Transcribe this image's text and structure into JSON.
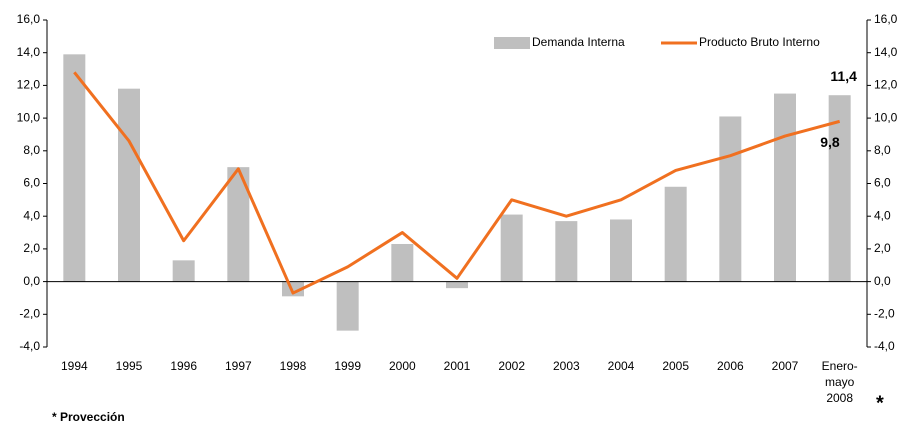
{
  "chart_data": {
    "type": "bar-line",
    "categories": [
      "1994",
      "1995",
      "1996",
      "1997",
      "1998",
      "1999",
      "2000",
      "2001",
      "2002",
      "2003",
      "2004",
      "2005",
      "2006",
      "2007",
      "Enero-\nmayo\n2008"
    ],
    "series": [
      {
        "name": "Demanda Interna",
        "type": "bar",
        "color": "#bfbfbf",
        "values": [
          13.9,
          11.8,
          1.3,
          7.0,
          -0.9,
          -3.0,
          2.3,
          -0.4,
          4.1,
          3.7,
          3.8,
          5.8,
          10.1,
          11.5,
          11.4
        ],
        "value_labels": [
          null,
          null,
          null,
          null,
          null,
          null,
          null,
          null,
          null,
          null,
          null,
          null,
          null,
          null,
          "11,4"
        ]
      },
      {
        "name": "Producto Bruto Interno",
        "type": "line",
        "color": "#f07020",
        "values": [
          12.8,
          8.6,
          2.5,
          6.9,
          -0.7,
          0.9,
          3.0,
          0.2,
          5.0,
          4.0,
          5.0,
          6.8,
          7.7,
          8.9,
          9.8
        ],
        "value_labels": [
          null,
          null,
          null,
          null,
          null,
          null,
          null,
          null,
          null,
          null,
          null,
          null,
          null,
          null,
          "9,8"
        ]
      }
    ],
    "ylim": [
      -4,
      16
    ],
    "yticks": [
      {
        "value": -4,
        "label": "-4,0"
      },
      {
        "value": -2,
        "label": "-2,0"
      },
      {
        "value": 0,
        "label": "0,0"
      },
      {
        "value": 2,
        "label": "2,0"
      },
      {
        "value": 4,
        "label": "4,0"
      },
      {
        "value": 6,
        "label": "6,0"
      },
      {
        "value": 8,
        "label": "8,0"
      },
      {
        "value": 10,
        "label": "10,0"
      },
      {
        "value": 12,
        "label": "12,0"
      },
      {
        "value": 14,
        "label": "14,0"
      },
      {
        "value": 16,
        "label": "16,0"
      }
    ],
    "y2lim": [
      -4,
      16
    ],
    "y2ticks": [
      {
        "value": -4,
        "label": "-4,0"
      },
      {
        "value": -2,
        "label": "-2,0"
      },
      {
        "value": 0,
        "label": "0,0"
      },
      {
        "value": 2,
        "label": "2,0"
      },
      {
        "value": 4,
        "label": "4,0"
      },
      {
        "value": 6,
        "label": "6,0"
      },
      {
        "value": 8,
        "label": "8,0"
      },
      {
        "value": 10,
        "label": "10,0"
      },
      {
        "value": 12,
        "label": "12,0"
      },
      {
        "value": 14,
        "label": "14,0"
      },
      {
        "value": 16,
        "label": "16,0"
      }
    ],
    "legend": "top-right",
    "annotations": [
      "*",
      "* Provección"
    ]
  }
}
